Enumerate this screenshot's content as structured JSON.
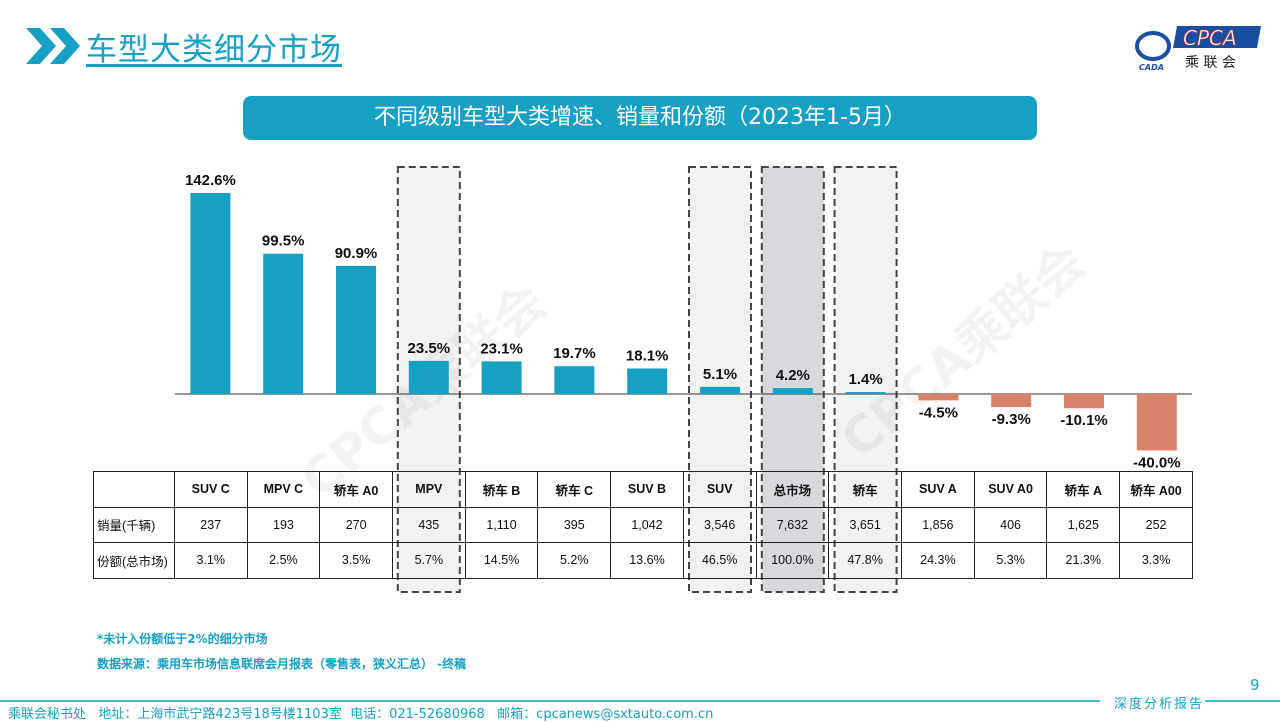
{
  "header": {
    "title": "车型大类细分市场",
    "logo_text": "CPCA",
    "logo_sub": "乘联会",
    "logo_small": "CADA"
  },
  "chart_data": {
    "type": "bar",
    "title": "不同级别车型大类增速、销量和份额（2023年1-5月）",
    "categories": [
      "SUV C",
      "MPV C",
      "轿车 A0",
      "MPV",
      "轿车 B",
      "轿车 C",
      "SUV B",
      "SUV",
      "总市场",
      "轿车",
      "SUV A",
      "SUV A0",
      "轿车 A",
      "轿车 A00"
    ],
    "values": [
      142.6,
      99.5,
      90.9,
      23.5,
      23.1,
      19.7,
      18.1,
      5.1,
      4.2,
      1.4,
      -4.5,
      -9.3,
      -10.1,
      -40.0
    ],
    "value_labels": [
      "142.6%",
      "99.5%",
      "90.9%",
      "23.5%",
      "23.1%",
      "19.7%",
      "18.1%",
      "5.1%",
      "4.2%",
      "1.4%",
      "-4.5%",
      "-9.3%",
      "-10.1%",
      "-40.0%"
    ],
    "highlighted": [
      "MPV",
      "SUV",
      "总市场",
      "轿车"
    ],
    "colors": {
      "positive": "#16a0c4",
      "negative": "#d9826a",
      "highlight_fill": "#f2f2f2",
      "total_fill": "#d8d8de"
    },
    "table": {
      "row_labels": [
        "销量(千辆)",
        "份额(总市场)"
      ],
      "sales": [
        "237",
        "193",
        "270",
        "435",
        "1,110",
        "395",
        "1,042",
        "3,546",
        "7,632",
        "3,651",
        "1,856",
        "406",
        "1,625",
        "252"
      ],
      "share": [
        "3.1%",
        "2.5%",
        "3.5%",
        "5.7%",
        "14.5%",
        "5.2%",
        "13.6%",
        "46.5%",
        "100.0%",
        "47.8%",
        "24.3%",
        "5.3%",
        "21.3%",
        "3.3%"
      ]
    }
  },
  "notes": {
    "note1": "*未计入份额低于2%的细分市场",
    "source": "数据来源：乘用车市场信息联席会月报表（零售表，狭义汇总） -终稿"
  },
  "watermark": "CPCA乘联会",
  "footer": {
    "text": "乘联会秘书处   地址：上海市武宁路423号18号楼1103室  电话：021-52680968   邮箱：cpcanews@sxtauto.com.cn",
    "report": "深度分析报告",
    "page": "9"
  }
}
